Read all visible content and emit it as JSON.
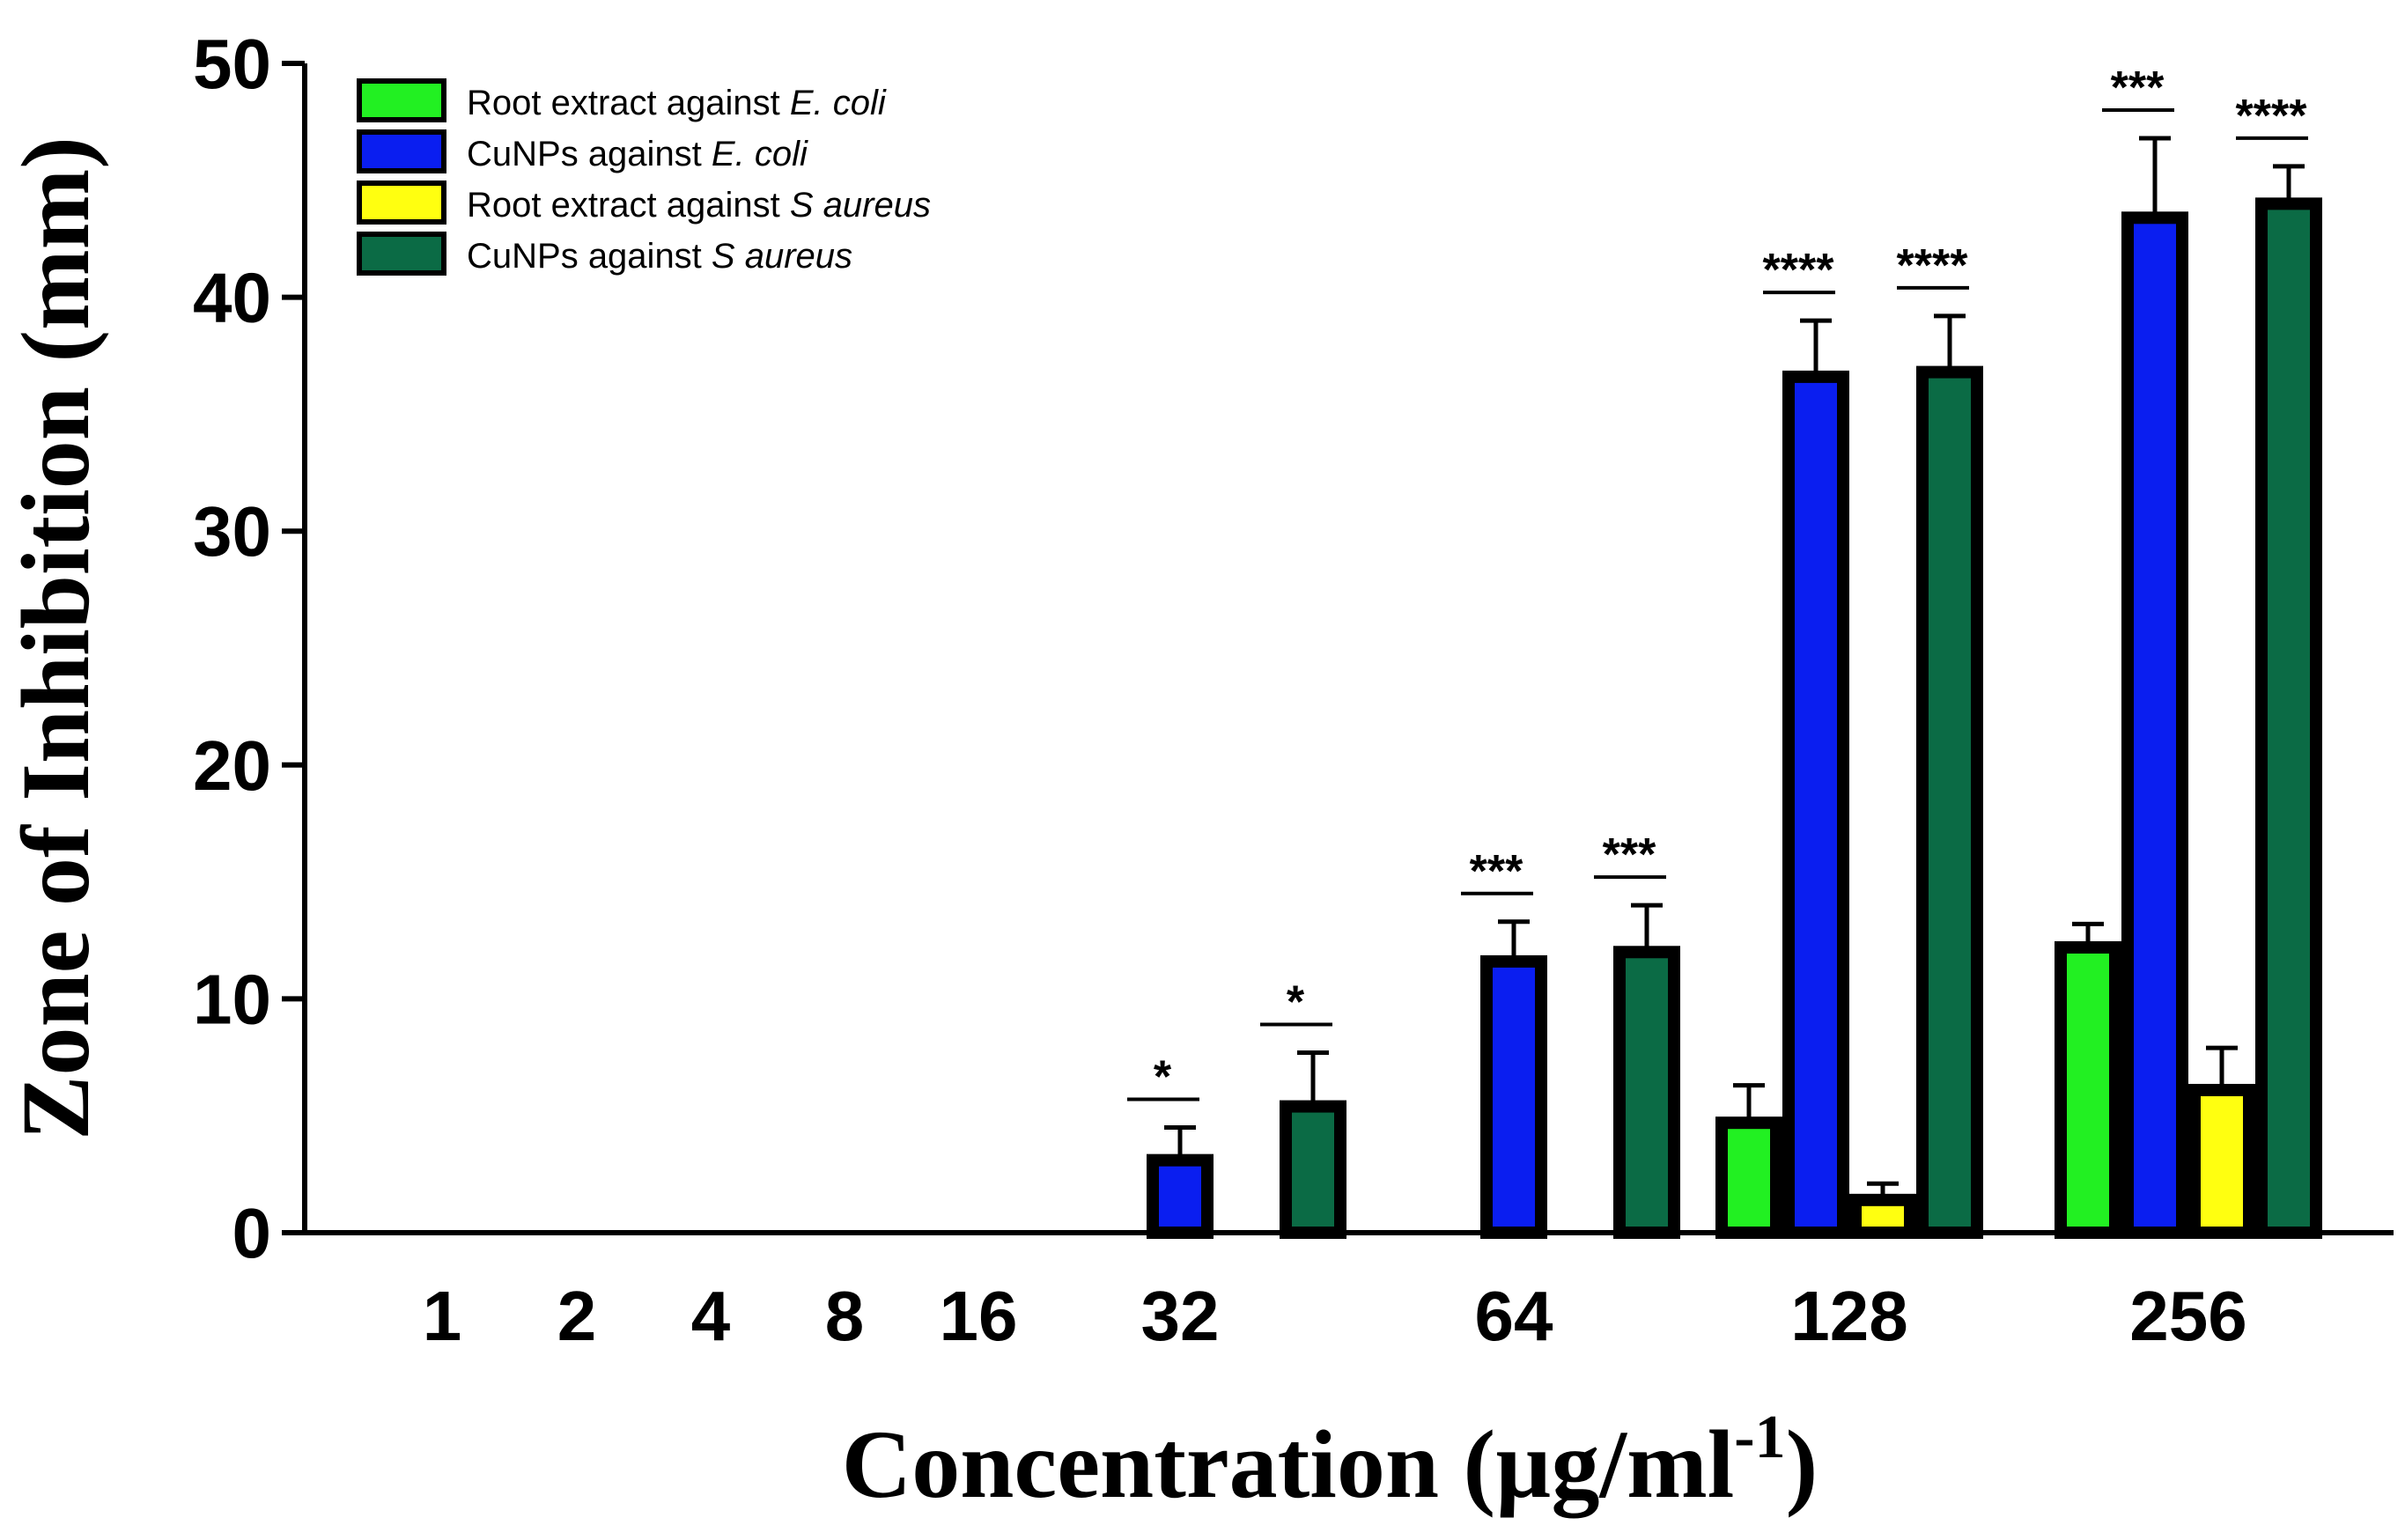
{
  "chart_data": {
    "type": "bar",
    "categories": [
      "1",
      "2",
      "4",
      "8",
      "16",
      "32",
      "64",
      "128",
      "256"
    ],
    "xlabel": "Concentration (µg/ml",
    "xlabel_sup": "-1",
    "xlabel_close": ")",
    "ylabel": "Zone of Inhibition (mm)",
    "ylim": [
      0,
      50
    ],
    "yticks": [
      "0",
      "10",
      "20",
      "30",
      "40",
      "50"
    ],
    "grid": false,
    "legend_position": "top-left",
    "series": [
      {
        "name_plain": "Root extract against ",
        "name_italic": "E. coli",
        "color": "#22f022",
        "values": [
          0,
          0,
          0,
          0,
          0,
          0,
          0,
          4.7,
          12.2
        ],
        "errors": [
          0,
          0,
          0,
          0,
          0,
          0,
          0,
          1.6,
          1.0
        ]
      },
      {
        "name_plain": "CuNPs against ",
        "name_italic": "E. coli",
        "color": "#0a1ef0",
        "values": [
          0,
          0,
          0,
          0,
          0,
          3.1,
          11.6,
          36.6,
          43.4
        ],
        "errors": [
          0,
          0,
          0,
          0,
          0,
          1.4,
          1.7,
          2.4,
          3.4
        ],
        "sig": [
          null,
          null,
          null,
          null,
          null,
          "*",
          "***",
          "****",
          "***"
        ]
      },
      {
        "name_plain": "Root extract against ",
        "name_italic": "S aureus",
        "color": "#ffff10",
        "values": [
          0,
          0,
          0,
          0,
          0,
          0,
          0,
          1.4,
          6.1
        ],
        "errors": [
          0,
          0,
          0,
          0,
          0,
          0,
          0,
          0.7,
          1.8
        ]
      },
      {
        "name_plain": "CuNPs against ",
        "name_italic": "S aureus",
        "color": "#0b6b45",
        "values": [
          0,
          0,
          0,
          0,
          0,
          5.4,
          12.0,
          36.8,
          44.0
        ],
        "errors": [
          0,
          0,
          0,
          0,
          0,
          2.3,
          2.0,
          2.4,
          1.6
        ],
        "sig": [
          null,
          null,
          null,
          null,
          null,
          "*",
          "***",
          "****",
          "****"
        ]
      }
    ]
  }
}
